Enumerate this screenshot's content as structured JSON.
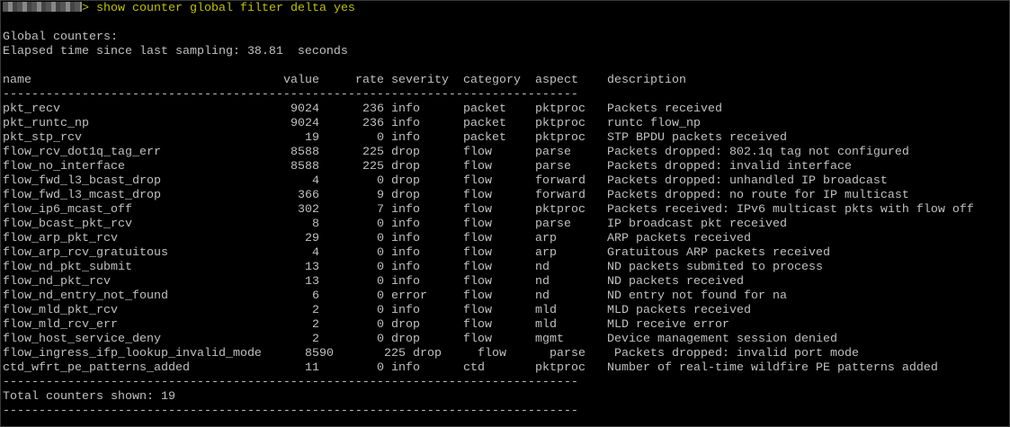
{
  "terminal": {
    "prompt_suffix": ">",
    "command": "show counter global filter delta yes",
    "colors": {
      "text": "#c0c0c0",
      "command": "#c0c000",
      "background": "#000000"
    },
    "heading": "Global counters:",
    "elapsed": "Elapsed time since last sampling: 38.81  seconds",
    "columns": [
      "name",
      "value",
      "rate",
      "severity",
      "category",
      "aspect",
      "description"
    ],
    "separator": "--------------------------------------------------------------------------------",
    "rows": [
      [
        "pkt_recv",
        "9024",
        "236",
        "info",
        "packet",
        "pktproc",
        "Packets received"
      ],
      [
        "pkt_runtc_np",
        "9024",
        "236",
        "info",
        "packet",
        "pktproc",
        "runtc flow_np"
      ],
      [
        "pkt_stp_rcv",
        "19",
        "0",
        "info",
        "packet",
        "pktproc",
        "STP BPDU packets received"
      ],
      [
        "flow_rcv_dot1q_tag_err",
        "8588",
        "225",
        "drop",
        "flow",
        "parse",
        "Packets dropped: 802.1q tag not configured"
      ],
      [
        "flow_no_interface",
        "8588",
        "225",
        "drop",
        "flow",
        "parse",
        "Packets dropped: invalid interface"
      ],
      [
        "flow_fwd_l3_bcast_drop",
        "4",
        "0",
        "drop",
        "flow",
        "forward",
        "Packets dropped: unhandled IP broadcast"
      ],
      [
        "flow_fwd_l3_mcast_drop",
        "366",
        "9",
        "drop",
        "flow",
        "forward",
        "Packets dropped: no route for IP multicast"
      ],
      [
        "flow_ip6_mcast_off",
        "302",
        "7",
        "info",
        "flow",
        "pktproc",
        "Packets received: IPv6 multicast pkts with flow off"
      ],
      [
        "flow_bcast_pkt_rcv",
        "8",
        "0",
        "info",
        "flow",
        "parse",
        "IP broadcast pkt received"
      ],
      [
        "flow_arp_pkt_rcv",
        "29",
        "0",
        "info",
        "flow",
        "arp",
        "ARP packets received"
      ],
      [
        "flow_arp_rcv_gratuitous",
        "4",
        "0",
        "info",
        "flow",
        "arp",
        "Gratuitous ARP packets received"
      ],
      [
        "flow_nd_pkt_submit",
        "13",
        "0",
        "info",
        "flow",
        "nd",
        "ND packets submited to process"
      ],
      [
        "flow_nd_pkt_rcv",
        "13",
        "0",
        "info",
        "flow",
        "nd",
        "ND packets received"
      ],
      [
        "flow_nd_entry_not_found",
        "6",
        "0",
        "error",
        "flow",
        "nd",
        "ND entry not found for na"
      ],
      [
        "flow_mld_pkt_rcv",
        "2",
        "0",
        "info",
        "flow",
        "mld",
        "MLD packets received"
      ],
      [
        "flow_mld_rcv_err",
        "2",
        "0",
        "drop",
        "flow",
        "mld",
        "MLD receive error"
      ],
      [
        "flow_host_service_deny",
        "2",
        "0",
        "drop",
        "flow",
        "mgmt",
        "Device management session denied"
      ],
      [
        "flow_ingress_ifp_lookup_invalid_mode",
        "8590",
        "225",
        "drop",
        "flow",
        "parse",
        "Packets dropped: invalid port mode"
      ],
      [
        "ctd_wfrt_pe_patterns_added",
        "11",
        "0",
        "info",
        "ctd",
        "pktproc",
        "Number of real-time wildfire PE patterns added"
      ]
    ],
    "total": "Total counters shown: 19"
  }
}
